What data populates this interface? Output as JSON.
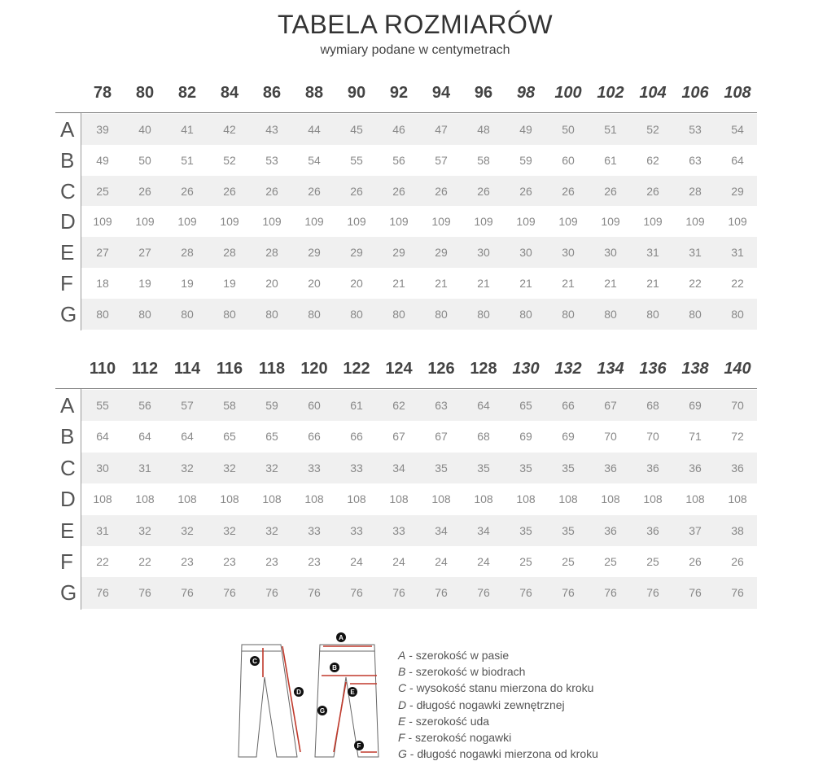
{
  "header": {
    "title": "TABELA ROZMIARÓW",
    "subtitle": "wymiary podane w centymetrach"
  },
  "row_labels": [
    "A",
    "B",
    "C",
    "D",
    "E",
    "F",
    "G"
  ],
  "tables": [
    {
      "sizes": [
        "78",
        "80",
        "82",
        "84",
        "86",
        "88",
        "90",
        "92",
        "94",
        "96",
        "98",
        "100",
        "102",
        "104",
        "106",
        "108"
      ],
      "rows": [
        [
          "39",
          "40",
          "41",
          "42",
          "43",
          "44",
          "45",
          "46",
          "47",
          "48",
          "49",
          "50",
          "51",
          "52",
          "53",
          "54"
        ],
        [
          "49",
          "50",
          "51",
          "52",
          "53",
          "54",
          "55",
          "56",
          "57",
          "58",
          "59",
          "60",
          "61",
          "62",
          "63",
          "64"
        ],
        [
          "25",
          "26",
          "26",
          "26",
          "26",
          "26",
          "26",
          "26",
          "26",
          "26",
          "26",
          "26",
          "26",
          "26",
          "28",
          "29"
        ],
        [
          "109",
          "109",
          "109",
          "109",
          "109",
          "109",
          "109",
          "109",
          "109",
          "109",
          "109",
          "109",
          "109",
          "109",
          "109",
          "109"
        ],
        [
          "27",
          "27",
          "28",
          "28",
          "28",
          "29",
          "29",
          "29",
          "29",
          "30",
          "30",
          "30",
          "30",
          "31",
          "31",
          "31"
        ],
        [
          "18",
          "19",
          "19",
          "19",
          "20",
          "20",
          "20",
          "21",
          "21",
          "21",
          "21",
          "21",
          "21",
          "21",
          "22",
          "22"
        ],
        [
          "80",
          "80",
          "80",
          "80",
          "80",
          "80",
          "80",
          "80",
          "80",
          "80",
          "80",
          "80",
          "80",
          "80",
          "80",
          "80"
        ]
      ]
    },
    {
      "sizes": [
        "110",
        "112",
        "114",
        "116",
        "118",
        "120",
        "122",
        "124",
        "126",
        "128",
        "130",
        "132",
        "134",
        "136",
        "138",
        "140"
      ],
      "rows": [
        [
          "55",
          "56",
          "57",
          "58",
          "59",
          "60",
          "61",
          "62",
          "63",
          "64",
          "65",
          "66",
          "67",
          "68",
          "69",
          "70"
        ],
        [
          "64",
          "64",
          "64",
          "65",
          "65",
          "66",
          "66",
          "67",
          "67",
          "68",
          "69",
          "69",
          "70",
          "70",
          "71",
          "72"
        ],
        [
          "30",
          "31",
          "32",
          "32",
          "32",
          "33",
          "33",
          "34",
          "35",
          "35",
          "35",
          "35",
          "36",
          "36",
          "36",
          "36"
        ],
        [
          "108",
          "108",
          "108",
          "108",
          "108",
          "108",
          "108",
          "108",
          "108",
          "108",
          "108",
          "108",
          "108",
          "108",
          "108",
          "108"
        ],
        [
          "31",
          "32",
          "32",
          "32",
          "32",
          "33",
          "33",
          "33",
          "34",
          "34",
          "35",
          "35",
          "36",
          "36",
          "37",
          "38"
        ],
        [
          "22",
          "22",
          "23",
          "23",
          "23",
          "23",
          "24",
          "24",
          "24",
          "24",
          "25",
          "25",
          "25",
          "25",
          "26",
          "26"
        ],
        [
          "76",
          "76",
          "76",
          "76",
          "76",
          "76",
          "76",
          "76",
          "76",
          "76",
          "76",
          "76",
          "76",
          "76",
          "76",
          "76"
        ]
      ]
    }
  ],
  "legend": [
    {
      "key": "A",
      "text": " - szerokość w pasie"
    },
    {
      "key": "B",
      "text": " - szerokość w biodrach"
    },
    {
      "key": "C",
      "text": " - wysokość stanu mierzona do kroku"
    },
    {
      "key": "D",
      "text": " - długość nogawki zewnętrznej"
    },
    {
      "key": "E",
      "text": " - szerokość uda"
    },
    {
      "key": "F",
      "text": " - szerokość nogawki"
    },
    {
      "key": "G",
      "text": " - długość nogawki mierzona od kroku"
    }
  ],
  "colors": {
    "shade": "#f0f0f0",
    "arrow": "#c0392b",
    "text": "#444444"
  }
}
